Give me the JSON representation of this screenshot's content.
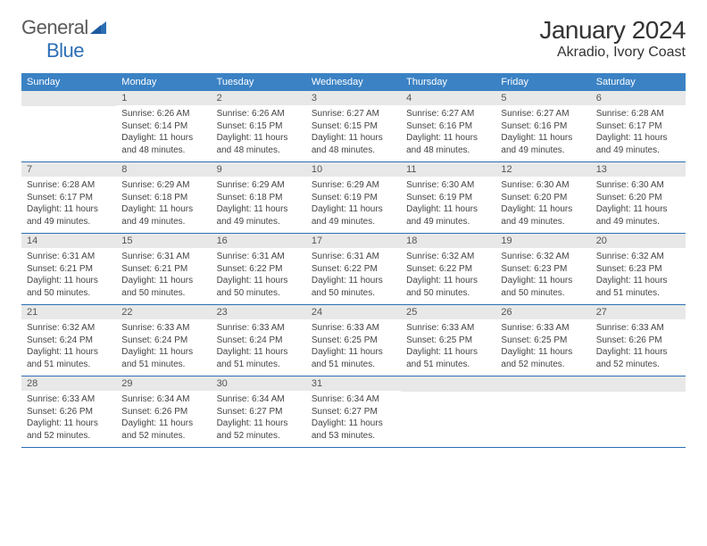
{
  "logo": {
    "part1": "General",
    "part2": "Blue"
  },
  "title": "January 2024",
  "location": "Akradio, Ivory Coast",
  "colors": {
    "header_bg": "#3b82c4",
    "header_fg": "#ffffff",
    "daynum_bg": "#e8e8e8",
    "border": "#2b6fb5",
    "text": "#444444",
    "logo_gray": "#5a5a5a",
    "logo_blue": "#2b6fb5"
  },
  "day_labels": [
    "Sunday",
    "Monday",
    "Tuesday",
    "Wednesday",
    "Thursday",
    "Friday",
    "Saturday"
  ],
  "weeks": [
    [
      null,
      {
        "n": "1",
        "sr": "6:26 AM",
        "ss": "6:14 PM",
        "dl": "11 hours and 48 minutes."
      },
      {
        "n": "2",
        "sr": "6:26 AM",
        "ss": "6:15 PM",
        "dl": "11 hours and 48 minutes."
      },
      {
        "n": "3",
        "sr": "6:27 AM",
        "ss": "6:15 PM",
        "dl": "11 hours and 48 minutes."
      },
      {
        "n": "4",
        "sr": "6:27 AM",
        "ss": "6:16 PM",
        "dl": "11 hours and 48 minutes."
      },
      {
        "n": "5",
        "sr": "6:27 AM",
        "ss": "6:16 PM",
        "dl": "11 hours and 49 minutes."
      },
      {
        "n": "6",
        "sr": "6:28 AM",
        "ss": "6:17 PM",
        "dl": "11 hours and 49 minutes."
      }
    ],
    [
      {
        "n": "7",
        "sr": "6:28 AM",
        "ss": "6:17 PM",
        "dl": "11 hours and 49 minutes."
      },
      {
        "n": "8",
        "sr": "6:29 AM",
        "ss": "6:18 PM",
        "dl": "11 hours and 49 minutes."
      },
      {
        "n": "9",
        "sr": "6:29 AM",
        "ss": "6:18 PM",
        "dl": "11 hours and 49 minutes."
      },
      {
        "n": "10",
        "sr": "6:29 AM",
        "ss": "6:19 PM",
        "dl": "11 hours and 49 minutes."
      },
      {
        "n": "11",
        "sr": "6:30 AM",
        "ss": "6:19 PM",
        "dl": "11 hours and 49 minutes."
      },
      {
        "n": "12",
        "sr": "6:30 AM",
        "ss": "6:20 PM",
        "dl": "11 hours and 49 minutes."
      },
      {
        "n": "13",
        "sr": "6:30 AM",
        "ss": "6:20 PM",
        "dl": "11 hours and 49 minutes."
      }
    ],
    [
      {
        "n": "14",
        "sr": "6:31 AM",
        "ss": "6:21 PM",
        "dl": "11 hours and 50 minutes."
      },
      {
        "n": "15",
        "sr": "6:31 AM",
        "ss": "6:21 PM",
        "dl": "11 hours and 50 minutes."
      },
      {
        "n": "16",
        "sr": "6:31 AM",
        "ss": "6:22 PM",
        "dl": "11 hours and 50 minutes."
      },
      {
        "n": "17",
        "sr": "6:31 AM",
        "ss": "6:22 PM",
        "dl": "11 hours and 50 minutes."
      },
      {
        "n": "18",
        "sr": "6:32 AM",
        "ss": "6:22 PM",
        "dl": "11 hours and 50 minutes."
      },
      {
        "n": "19",
        "sr": "6:32 AM",
        "ss": "6:23 PM",
        "dl": "11 hours and 50 minutes."
      },
      {
        "n": "20",
        "sr": "6:32 AM",
        "ss": "6:23 PM",
        "dl": "11 hours and 51 minutes."
      }
    ],
    [
      {
        "n": "21",
        "sr": "6:32 AM",
        "ss": "6:24 PM",
        "dl": "11 hours and 51 minutes."
      },
      {
        "n": "22",
        "sr": "6:33 AM",
        "ss": "6:24 PM",
        "dl": "11 hours and 51 minutes."
      },
      {
        "n": "23",
        "sr": "6:33 AM",
        "ss": "6:24 PM",
        "dl": "11 hours and 51 minutes."
      },
      {
        "n": "24",
        "sr": "6:33 AM",
        "ss": "6:25 PM",
        "dl": "11 hours and 51 minutes."
      },
      {
        "n": "25",
        "sr": "6:33 AM",
        "ss": "6:25 PM",
        "dl": "11 hours and 51 minutes."
      },
      {
        "n": "26",
        "sr": "6:33 AM",
        "ss": "6:25 PM",
        "dl": "11 hours and 52 minutes."
      },
      {
        "n": "27",
        "sr": "6:33 AM",
        "ss": "6:26 PM",
        "dl": "11 hours and 52 minutes."
      }
    ],
    [
      {
        "n": "28",
        "sr": "6:33 AM",
        "ss": "6:26 PM",
        "dl": "11 hours and 52 minutes."
      },
      {
        "n": "29",
        "sr": "6:34 AM",
        "ss": "6:26 PM",
        "dl": "11 hours and 52 minutes."
      },
      {
        "n": "30",
        "sr": "6:34 AM",
        "ss": "6:27 PM",
        "dl": "11 hours and 52 minutes."
      },
      {
        "n": "31",
        "sr": "6:34 AM",
        "ss": "6:27 PM",
        "dl": "11 hours and 53 minutes."
      },
      null,
      null,
      null
    ]
  ],
  "labels": {
    "sunrise": "Sunrise:",
    "sunset": "Sunset:",
    "daylight": "Daylight:"
  }
}
